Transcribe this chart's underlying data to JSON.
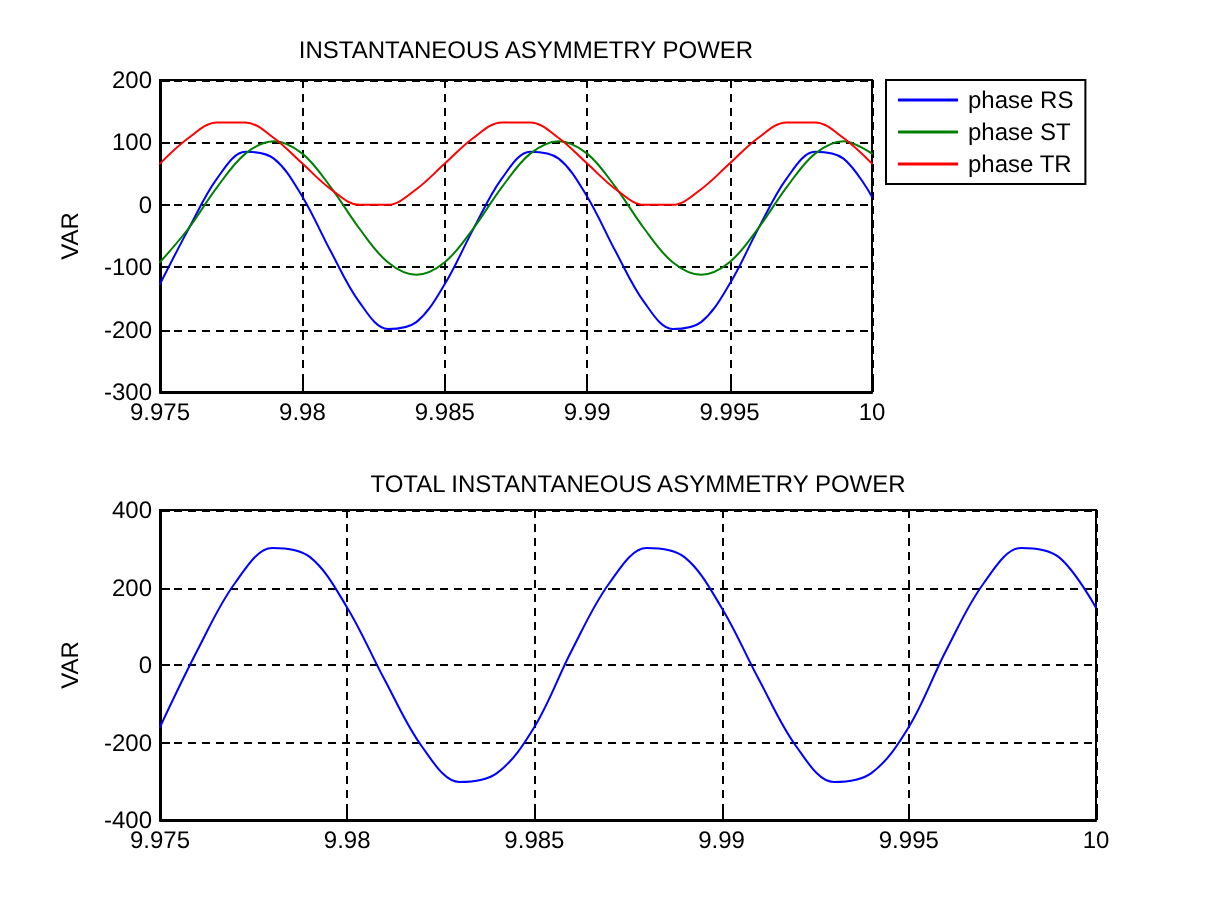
{
  "chart_data": [
    {
      "type": "line",
      "title": "INSTANTANEOUS ASYMMETRY POWER",
      "ylabel": "VAR",
      "x": [
        9.975,
        9.976,
        9.977,
        9.978,
        9.979,
        9.98,
        9.981,
        9.982,
        9.983,
        9.984,
        9.985,
        9.986,
        9.987,
        9.988,
        9.989,
        9.99,
        9.991,
        9.992,
        9.993,
        9.994,
        9.995,
        9.996,
        9.997,
        9.998,
        9.999,
        10
      ],
      "series": [
        {
          "name": "phase RS",
          "color": "#0000ff",
          "values": [
            -127,
            -39,
            42,
            85,
            74,
            13,
            -75,
            -156,
            -199,
            -188,
            -127,
            -39,
            42,
            85,
            74,
            13,
            -75,
            -156,
            -199,
            -188,
            -127,
            -39,
            42,
            85,
            74,
            13
          ]
        },
        {
          "name": "phase ST",
          "color": "#008000",
          "values": [
            -92,
            -38,
            28,
            82,
            102,
            82,
            28,
            -38,
            -92,
            -112,
            -92,
            -38,
            28,
            82,
            102,
            82,
            28,
            -38,
            -92,
            -112,
            -92,
            -38,
            28,
            82,
            102,
            82
          ]
        },
        {
          "name": "phase TR",
          "color": "#ff0000",
          "values": [
            66,
            107,
            132,
            132,
            107,
            66,
            25,
            0,
            0,
            25,
            66,
            107,
            132,
            132,
            107,
            66,
            25,
            0,
            0,
            25,
            66,
            107,
            132,
            132,
            107,
            66
          ]
        }
      ],
      "xlim": [
        9.975,
        10
      ],
      "xticks": [
        9.975,
        9.98,
        9.985,
        9.99,
        9.995,
        10
      ],
      "ylim": [
        -300,
        200
      ],
      "yticks": [
        -300,
        -200,
        -100,
        0,
        100,
        200
      ],
      "grid": true,
      "legend": "top right",
      "marker": "none",
      "line_style": "solid"
    },
    {
      "type": "line",
      "title": "TOTAL INSTANTANEOUS ASYMMETRY POWER",
      "ylabel": "VAR",
      "x": [
        9.975,
        9.976,
        9.977,
        9.978,
        9.979,
        9.98,
        9.981,
        9.982,
        9.983,
        9.984,
        9.985,
        9.986,
        9.987,
        9.988,
        9.989,
        9.99,
        9.991,
        9.992,
        9.993,
        9.994,
        9.995,
        9.996,
        9.997,
        9.998,
        9.999,
        10
      ],
      "series": [
        {
          "color": "#0000ff",
          "values": [
            -160,
            38,
            211,
            302,
            279,
            148,
            -38,
            -211,
            -302,
            -279,
            -160,
            38,
            211,
            302,
            279,
            148,
            -38,
            -211,
            -302,
            -279,
            -160,
            38,
            211,
            302,
            279,
            148
          ]
        }
      ],
      "xlim": [
        9.975,
        10
      ],
      "xticks": [
        9.975,
        9.98,
        9.985,
        9.99,
        9.995,
        10
      ],
      "ylim": [
        -400,
        400
      ],
      "yticks": [
        -400,
        -200,
        0,
        200,
        400
      ],
      "grid": true,
      "legend": false,
      "marker": "none",
      "line_style": "solid"
    }
  ]
}
